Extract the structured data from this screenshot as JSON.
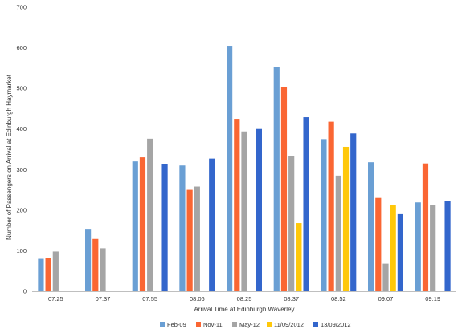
{
  "chart_data": {
    "type": "bar",
    "title": "",
    "xlabel": "Arrival Time at Edinburgh Waverley",
    "ylabel": "Number of Passengers on Arrival at Edinburgh Haymarket",
    "ylim": [
      0,
      700
    ],
    "yticks": [
      0,
      100,
      200,
      300,
      400,
      500,
      600,
      700
    ],
    "grid": false,
    "legend_position": "bottom",
    "categories": [
      "07:25",
      "07:37",
      "07:55",
      "08:06",
      "08:25",
      "08:37",
      "08:52",
      "09:07",
      "09:19"
    ],
    "series": [
      {
        "name": "Feb-09",
        "color": "#6a9fd4",
        "values": [
          80,
          152,
          320,
          310,
          605,
          553,
          375,
          318,
          219
        ]
      },
      {
        "name": "Nov-11",
        "color": "#fa6633",
        "values": [
          82,
          129,
          330,
          250,
          425,
          503,
          418,
          230,
          315
        ]
      },
      {
        "name": "May-12",
        "color": "#a5a5a5",
        "values": [
          98,
          106,
          376,
          258,
          394,
          334,
          285,
          68,
          213
        ]
      },
      {
        "name": "11/09/2012",
        "color": "#ffc80a",
        "values": [
          null,
          null,
          null,
          null,
          null,
          168,
          356,
          213,
          null
        ]
      },
      {
        "name": "13/09/2012",
        "color": "#3366cc",
        "values": [
          null,
          null,
          313,
          327,
          400,
          429,
          389,
          190,
          222
        ]
      }
    ]
  }
}
